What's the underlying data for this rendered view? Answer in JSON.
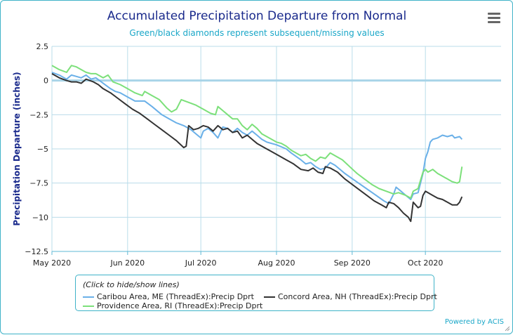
{
  "chart_data": {
    "type": "line",
    "title": "Accumulated Precipitation Departure from Normal",
    "subtitle": "Green/black diamonds represent subsequent/missing values",
    "ylabel": "Precipitation Departure (inches)",
    "xlabel": "",
    "ylim": [
      -12.5,
      2.5
    ],
    "yticks": [
      2.5,
      0,
      -2.5,
      -5,
      -7.5,
      -10,
      -12.5
    ],
    "ytick_labels": [
      "2.5",
      "0",
      "−2.5",
      "−5",
      "−7.5",
      "−10",
      "−12.5"
    ],
    "xlim": [
      0,
      184
    ],
    "xticks": [
      0,
      31,
      61,
      92,
      123,
      153
    ],
    "xtick_labels": [
      "May 2020",
      "Jun 2020",
      "Jul 2020",
      "Aug 2020",
      "Sep 2020",
      "Oct 2020"
    ],
    "zero_line": 0,
    "series": [
      {
        "name": "Caribou Area, ME (ThreadEx):Precip Dprt",
        "color": "#6ab0e8",
        "points": [
          [
            0,
            0.6
          ],
          [
            3,
            0.4
          ],
          [
            6,
            0.1
          ],
          [
            8,
            0.4
          ],
          [
            10,
            0.3
          ],
          [
            12,
            0.2
          ],
          [
            14,
            0.4
          ],
          [
            16,
            0.1
          ],
          [
            18,
            0.2
          ],
          [
            21,
            -0.2
          ],
          [
            24,
            -0.6
          ],
          [
            26,
            -0.8
          ],
          [
            28,
            -0.9
          ],
          [
            30,
            -1.1
          ],
          [
            32,
            -1.3
          ],
          [
            34,
            -1.5
          ],
          [
            38,
            -1.5
          ],
          [
            41,
            -1.9
          ],
          [
            45,
            -2.5
          ],
          [
            48,
            -2.8
          ],
          [
            51,
            -3.1
          ],
          [
            54,
            -3.3
          ],
          [
            57,
            -3.6
          ],
          [
            59,
            -3.9
          ],
          [
            61,
            -4.2
          ],
          [
            62,
            -3.7
          ],
          [
            64,
            -3.5
          ],
          [
            66,
            -3.8
          ],
          [
            68,
            -4.2
          ],
          [
            70,
            -3.4
          ],
          [
            72,
            -3.5
          ],
          [
            74,
            -3.8
          ],
          [
            76,
            -3.5
          ],
          [
            78,
            -3.8
          ],
          [
            80,
            -4.0
          ],
          [
            82,
            -3.7
          ],
          [
            84,
            -4.0
          ],
          [
            86,
            -4.3
          ],
          [
            88,
            -4.5
          ],
          [
            92,
            -4.7
          ],
          [
            96,
            -5.0
          ],
          [
            98,
            -5.3
          ],
          [
            102,
            -5.8
          ],
          [
            104,
            -6.1
          ],
          [
            106,
            -6.0
          ],
          [
            108,
            -6.3
          ],
          [
            110,
            -6.5
          ],
          [
            112,
            -6.4
          ],
          [
            114,
            -6.0
          ],
          [
            116,
            -6.2
          ],
          [
            120,
            -6.8
          ],
          [
            124,
            -7.3
          ],
          [
            128,
            -7.8
          ],
          [
            132,
            -8.3
          ],
          [
            136,
            -8.8
          ],
          [
            138,
            -9.0
          ],
          [
            140,
            -8.3
          ],
          [
            141,
            -7.8
          ],
          [
            143,
            -8.1
          ],
          [
            145,
            -8.4
          ],
          [
            147,
            -8.7
          ],
          [
            148,
            -8.3
          ],
          [
            150,
            -8.2
          ],
          [
            151,
            -7.5
          ],
          [
            152,
            -6.8
          ],
          [
            153,
            -5.7
          ],
          [
            154,
            -5.2
          ],
          [
            155,
            -4.5
          ],
          [
            156,
            -4.3
          ],
          [
            158,
            -4.2
          ],
          [
            160,
            -4.0
          ],
          [
            162,
            -4.1
          ],
          [
            164,
            -4.0
          ],
          [
            165,
            -4.2
          ],
          [
            167,
            -4.1
          ],
          [
            168,
            -4.3
          ]
        ]
      },
      {
        "name": "Providence Area, RI (ThreadEx):Precip Dprt",
        "color": "#7ce07a",
        "points": [
          [
            0,
            1.1
          ],
          [
            3,
            0.8
          ],
          [
            6,
            0.6
          ],
          [
            8,
            1.1
          ],
          [
            10,
            1.0
          ],
          [
            12,
            0.8
          ],
          [
            14,
            0.6
          ],
          [
            16,
            0.5
          ],
          [
            18,
            0.5
          ],
          [
            21,
            0.2
          ],
          [
            23,
            0.4
          ],
          [
            25,
            -0.1
          ],
          [
            28,
            -0.3
          ],
          [
            31,
            -0.6
          ],
          [
            34,
            -0.9
          ],
          [
            37,
            -1.1
          ],
          [
            38,
            -0.8
          ],
          [
            41,
            -1.1
          ],
          [
            44,
            -1.4
          ],
          [
            47,
            -2.0
          ],
          [
            49,
            -2.3
          ],
          [
            51,
            -2.1
          ],
          [
            53,
            -1.4
          ],
          [
            56,
            -1.6
          ],
          [
            59,
            -1.8
          ],
          [
            62,
            -2.1
          ],
          [
            65,
            -2.4
          ],
          [
            67,
            -2.5
          ],
          [
            68,
            -1.9
          ],
          [
            70,
            -2.2
          ],
          [
            72,
            -2.5
          ],
          [
            74,
            -2.8
          ],
          [
            76,
            -2.8
          ],
          [
            78,
            -3.3
          ],
          [
            80,
            -3.6
          ],
          [
            82,
            -3.2
          ],
          [
            84,
            -3.5
          ],
          [
            86,
            -3.9
          ],
          [
            88,
            -4.1
          ],
          [
            92,
            -4.5
          ],
          [
            94,
            -4.6
          ],
          [
            96,
            -4.8
          ],
          [
            98,
            -5.1
          ],
          [
            102,
            -5.5
          ],
          [
            104,
            -5.4
          ],
          [
            106,
            -5.7
          ],
          [
            108,
            -5.9
          ],
          [
            110,
            -5.6
          ],
          [
            112,
            -5.7
          ],
          [
            114,
            -5.3
          ],
          [
            116,
            -5.5
          ],
          [
            119,
            -5.8
          ],
          [
            122,
            -6.3
          ],
          [
            125,
            -6.8
          ],
          [
            128,
            -7.2
          ],
          [
            131,
            -7.6
          ],
          [
            134,
            -7.9
          ],
          [
            137,
            -8.1
          ],
          [
            140,
            -8.3
          ],
          [
            142,
            -8.2
          ],
          [
            145,
            -8.4
          ],
          [
            147,
            -8.6
          ],
          [
            148,
            -8.1
          ],
          [
            150,
            -7.9
          ],
          [
            151,
            -7.3
          ],
          [
            152,
            -6.7
          ],
          [
            153,
            -6.5
          ],
          [
            154,
            -6.7
          ],
          [
            156,
            -6.5
          ],
          [
            158,
            -6.8
          ],
          [
            160,
            -7.0
          ],
          [
            162,
            -7.2
          ],
          [
            164,
            -7.4
          ],
          [
            166,
            -7.5
          ],
          [
            167,
            -7.4
          ],
          [
            168,
            -6.3
          ]
        ]
      },
      {
        "name": "Concord Area, NH (ThreadEx):Precip Dprt",
        "color": "#333333",
        "points": [
          [
            0,
            0.5
          ],
          [
            3,
            0.2
          ],
          [
            6,
            0.0
          ],
          [
            8,
            -0.1
          ],
          [
            10,
            -0.1
          ],
          [
            12,
            -0.2
          ],
          [
            14,
            0.1
          ],
          [
            17,
            -0.1
          ],
          [
            19,
            -0.3
          ],
          [
            21,
            -0.6
          ],
          [
            24,
            -0.9
          ],
          [
            27,
            -1.3
          ],
          [
            30,
            -1.7
          ],
          [
            33,
            -2.1
          ],
          [
            36,
            -2.4
          ],
          [
            39,
            -2.8
          ],
          [
            42,
            -3.2
          ],
          [
            45,
            -3.6
          ],
          [
            48,
            -4.0
          ],
          [
            51,
            -4.4
          ],
          [
            54,
            -4.9
          ],
          [
            55,
            -4.8
          ],
          [
            56,
            -3.3
          ],
          [
            58,
            -3.6
          ],
          [
            60,
            -3.5
          ],
          [
            62,
            -3.3
          ],
          [
            64,
            -3.4
          ],
          [
            66,
            -3.7
          ],
          [
            68,
            -3.3
          ],
          [
            70,
            -3.6
          ],
          [
            72,
            -3.5
          ],
          [
            74,
            -3.8
          ],
          [
            76,
            -3.7
          ],
          [
            78,
            -4.2
          ],
          [
            80,
            -4.0
          ],
          [
            82,
            -4.3
          ],
          [
            84,
            -4.6
          ],
          [
            87,
            -4.9
          ],
          [
            90,
            -5.2
          ],
          [
            93,
            -5.5
          ],
          [
            96,
            -5.8
          ],
          [
            99,
            -6.1
          ],
          [
            102,
            -6.5
          ],
          [
            105,
            -6.6
          ],
          [
            107,
            -6.4
          ],
          [
            109,
            -6.7
          ],
          [
            111,
            -6.8
          ],
          [
            112,
            -6.3
          ],
          [
            114,
            -6.4
          ],
          [
            117,
            -6.7
          ],
          [
            120,
            -7.2
          ],
          [
            123,
            -7.6
          ],
          [
            126,
            -8.0
          ],
          [
            129,
            -8.4
          ],
          [
            132,
            -8.8
          ],
          [
            135,
            -9.1
          ],
          [
            137,
            -9.3
          ],
          [
            138,
            -8.9
          ],
          [
            140,
            -9.0
          ],
          [
            142,
            -9.3
          ],
          [
            144,
            -9.7
          ],
          [
            146,
            -10.0
          ],
          [
            147,
            -10.3
          ],
          [
            148,
            -8.9
          ],
          [
            150,
            -9.3
          ],
          [
            151,
            -9.2
          ],
          [
            152,
            -8.4
          ],
          [
            153,
            -8.1
          ],
          [
            154,
            -8.2
          ],
          [
            156,
            -8.4
          ],
          [
            158,
            -8.6
          ],
          [
            160,
            -8.7
          ],
          [
            162,
            -8.9
          ],
          [
            164,
            -9.1
          ],
          [
            166,
            -9.1
          ],
          [
            167,
            -8.9
          ],
          [
            168,
            -8.5
          ]
        ]
      }
    ]
  },
  "legend": {
    "hint": "(Click to hide/show lines)"
  },
  "credit": "Powered by ACIS",
  "menu_icon": "hamburger-menu-icon"
}
